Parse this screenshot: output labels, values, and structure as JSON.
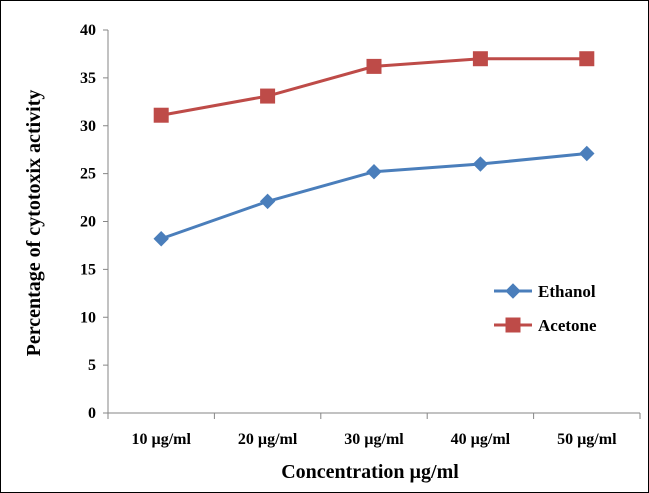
{
  "chart_data": {
    "type": "line",
    "title": "",
    "xlabel": "Concentration  µg/ml",
    "ylabel": "Percentage of cytotoxix  activity",
    "categories": [
      "10 µg/ml",
      "20 µg/ml",
      "30 µg/ml",
      "40 µg/ml",
      "50 µg/ml"
    ],
    "ylim": [
      0,
      40
    ],
    "yticks": [
      0,
      5,
      10,
      15,
      20,
      25,
      30,
      35,
      40
    ],
    "grid": false,
    "legend_position": "right",
    "series": [
      {
        "name": "Ethanol",
        "values": [
          18.2,
          22.1,
          25.2,
          26.0,
          27.1
        ],
        "color": "#4a7ebb",
        "marker": "diamond"
      },
      {
        "name": "Acetone",
        "values": [
          31.1,
          33.1,
          36.2,
          37.0,
          37.0
        ],
        "color": "#be4b48",
        "marker": "square"
      }
    ]
  }
}
